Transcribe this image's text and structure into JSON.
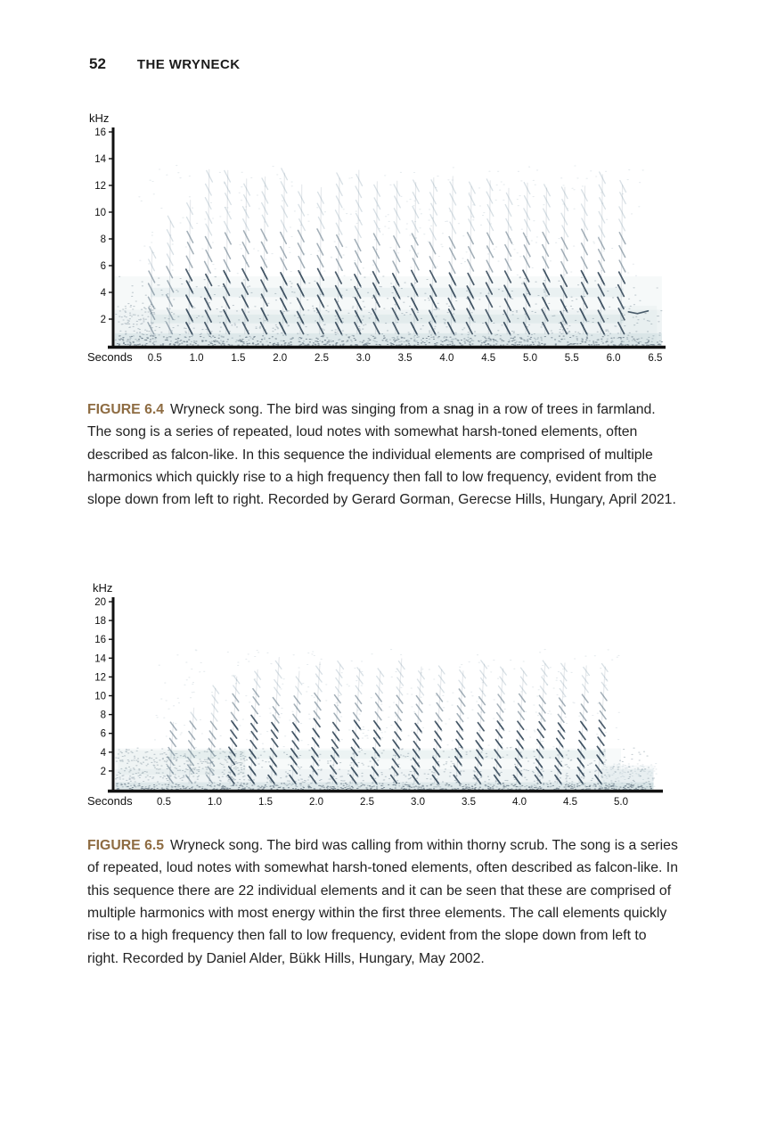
{
  "page": {
    "number": "52",
    "running_head": "THE WRYNECK",
    "background_color": "#ffffff"
  },
  "colors": {
    "figure_label": "#8e6c42",
    "body_text": "#222222",
    "axis": "#111111",
    "spectrogram_dark": "#2e4254",
    "spectrogram_mid": "#476072",
    "spectrogram_light": "#7391a1",
    "spectrogram_haze": "#bdd2d5"
  },
  "figures": [
    {
      "label": "FIGURE 6.4",
      "caption": "Wryneck song. The bird was singing from a snag in a row of trees in farmland. The song is a series of repeated, loud notes with somewhat harsh-toned elements, often described as falcon-like. In this sequence the individual elements are comprised of multiple harmonics which quickly rise to a high frequency then fall to low frequency, evident from the slope down from left to right. Recorded by Gerard Gorman, Gerecse Hills, Hungary, April 2021."
    },
    {
      "label": "FIGURE 6.5",
      "caption": "Wryneck song. The bird was calling from within thorny scrub. The song is a series of repeated, loud notes with somewhat harsh-toned elements, often described as falcon-like. In this sequence there are 22 individual elements and it can be seen that these are comprised of multiple harmonics with most energy within the first three elements. The call elements quickly rise to a high frequency then fall to low frequency, evident from the slope down from left to right. Recorded by Daniel Alder, Bükk Hills, Hungary, May 2002."
    }
  ],
  "chart_data": [
    {
      "type": "heatmap",
      "subtype": "spectrogram",
      "figure": "6.4",
      "title": "Wryneck song spectrogram",
      "xlabel": "Seconds",
      "ylabel": "kHz",
      "x_ticks": [
        0.5,
        1.0,
        1.5,
        2.0,
        2.5,
        3.0,
        3.5,
        4.0,
        4.5,
        5.0,
        5.5,
        6.0,
        6.5
      ],
      "y_ticks": [
        16,
        14,
        12,
        10,
        8,
        6,
        4,
        2
      ],
      "xlim": [
        0,
        6.6
      ],
      "ylim": [
        0,
        16.8
      ],
      "grid": false,
      "song": {
        "start_s": 0.45,
        "end_s": 6.08,
        "num_elements": 26,
        "element_low_khz": 1.3,
        "element_high_khz": 13,
        "dominant_energy_below_khz": 5.5,
        "harmonic_spacing_khz": 0.95,
        "slope": "falling left to right",
        "noise_bands_khz": [
          2.0,
          4.0
        ],
        "post_song_trace_khz": 2.6
      }
    },
    {
      "type": "heatmap",
      "subtype": "spectrogram",
      "figure": "6.5",
      "title": "Wryneck song spectrogram",
      "xlabel": "Seconds",
      "ylabel": "kHz",
      "x_ticks": [
        0.5,
        1.0,
        1.5,
        2.0,
        2.5,
        3.0,
        3.5,
        4.0,
        4.5,
        5.0
      ],
      "y_ticks": [
        20,
        18,
        16,
        14,
        12,
        10,
        8,
        6,
        4,
        2
      ],
      "xlim": [
        0,
        5.4
      ],
      "ylim": [
        0,
        21
      ],
      "grid": false,
      "song": {
        "start_s": 0.55,
        "end_s": 4.78,
        "num_elements": 22,
        "element_low_khz": 1.1,
        "element_high_khz": 14,
        "dominant_energy_below_khz": 7.5,
        "harmonic_spacing_khz": 0.95,
        "slope": "falling left to right",
        "energy_ramp_elements": 4,
        "pre_song_noise_khz": [
          1.5,
          4.2
        ]
      }
    }
  ]
}
